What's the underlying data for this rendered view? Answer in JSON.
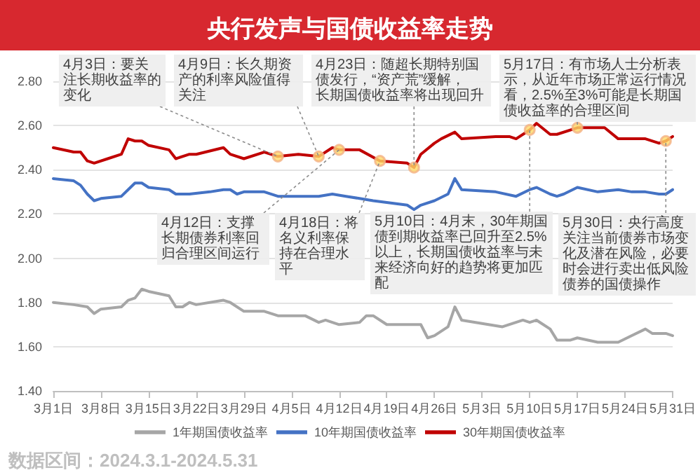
{
  "chart_data": {
    "type": "line",
    "title": "央行发声与国债收益率走势",
    "series": [
      {
        "name": "1年期国债收益率",
        "color": "#a6a6a6",
        "x": [
          "--03-01",
          "--03-04",
          "--03-06",
          "--03-07",
          "--03-08",
          "--03-11",
          "--03-12",
          "--03-13",
          "--03-14",
          "--03-15",
          "--03-18",
          "--03-19",
          "--03-20",
          "--03-21",
          "--03-22",
          "--03-26",
          "--03-27",
          "--03-29",
          "--04-01",
          "--04-03",
          "--04-07",
          "--04-09",
          "--04-10",
          "--04-12",
          "--04-15",
          "--04-16",
          "--04-17",
          "--04-19",
          "--04-22",
          "--04-24",
          "--04-25",
          "--04-26",
          "--04-28",
          "--04-29",
          "--04-30",
          "--05-06",
          "--05-09",
          "--05-10",
          "--05-11",
          "--05-13",
          "--05-14",
          "--05-16",
          "--05-17",
          "--05-20",
          "--05-21",
          "--05-23",
          "--05-25",
          "--05-27",
          "--05-28",
          "--05-30",
          "--05-31"
        ],
        "values": [
          1.8,
          1.79,
          1.78,
          1.75,
          1.77,
          1.78,
          1.81,
          1.82,
          1.86,
          1.85,
          1.83,
          1.78,
          1.78,
          1.8,
          1.79,
          1.81,
          1.8,
          1.76,
          1.76,
          1.74,
          1.74,
          1.71,
          1.72,
          1.7,
          1.71,
          1.74,
          1.74,
          1.7,
          1.7,
          1.7,
          1.64,
          1.65,
          1.69,
          1.78,
          1.72,
          1.69,
          1.72,
          1.71,
          1.72,
          1.68,
          1.63,
          1.63,
          1.64,
          1.62,
          1.62,
          1.62,
          1.65,
          1.68,
          1.66,
          1.66,
          1.65
        ]
      },
      {
        "name": "10年期国债收益率",
        "color": "#4472c4",
        "x": [
          "--03-01",
          "--03-04",
          "--03-05",
          "--03-06",
          "--03-07",
          "--03-08",
          "--03-11",
          "--03-13",
          "--03-14",
          "--03-15",
          "--03-18",
          "--03-19",
          "--03-21",
          "--03-24",
          "--03-26",
          "--03-27",
          "--03-28",
          "--03-29",
          "--04-01",
          "--04-03",
          "--04-06",
          "--04-09",
          "--04-11",
          "--04-13",
          "--04-15",
          "--04-17",
          "--04-22",
          "--04-23",
          "--04-24",
          "--04-26",
          "--04-28",
          "--04-29",
          "--04-30",
          "--05-05",
          "--05-08",
          "--05-10",
          "--05-11",
          "--05-13",
          "--05-14",
          "--05-15",
          "--05-17",
          "--05-20",
          "--05-23",
          "--05-25",
          "--05-27",
          "--05-29",
          "--05-30",
          "--05-31"
        ],
        "values": [
          2.36,
          2.35,
          2.33,
          2.29,
          2.26,
          2.27,
          2.28,
          2.34,
          2.34,
          2.32,
          2.31,
          2.29,
          2.29,
          2.3,
          2.31,
          2.31,
          2.29,
          2.3,
          2.3,
          2.28,
          2.28,
          2.28,
          2.29,
          2.28,
          2.27,
          2.26,
          2.24,
          2.22,
          2.24,
          2.26,
          2.29,
          2.36,
          2.31,
          2.3,
          2.28,
          2.31,
          2.32,
          2.29,
          2.28,
          2.29,
          2.32,
          2.3,
          2.31,
          2.3,
          2.3,
          2.29,
          2.29,
          2.31
        ]
      },
      {
        "name": "30年期国债收益率",
        "color": "#c00000",
        "x": [
          "--03-01",
          "--03-04",
          "--03-05",
          "--03-06",
          "--03-07",
          "--03-09",
          "--03-11",
          "--03-12",
          "--03-13",
          "--03-14",
          "--03-15",
          "--03-18",
          "--03-19",
          "--03-21",
          "--03-22",
          "--03-26",
          "--03-27",
          "--03-29",
          "--04-01",
          "--04-03",
          "--04-06",
          "--04-09",
          "--04-11",
          "--04-12",
          "--04-15",
          "--04-18",
          "--04-22",
          "--04-23",
          "--04-24",
          "--04-26",
          "--04-27",
          "--04-29",
          "--04-30",
          "--05-05",
          "--05-07",
          "--05-08",
          "--05-10",
          "--05-11",
          "--05-13",
          "--05-14",
          "--05-17",
          "--05-21",
          "--05-23",
          "--05-27",
          "--05-29",
          "--05-30",
          "--05-31"
        ],
        "values": [
          2.5,
          2.48,
          2.48,
          2.44,
          2.43,
          2.45,
          2.47,
          2.54,
          2.53,
          2.53,
          2.51,
          2.49,
          2.45,
          2.47,
          2.47,
          2.5,
          2.47,
          2.45,
          2.48,
          2.46,
          2.47,
          2.46,
          2.5,
          2.49,
          2.49,
          2.44,
          2.43,
          2.41,
          2.47,
          2.52,
          2.54,
          2.57,
          2.54,
          2.55,
          2.55,
          2.54,
          2.58,
          2.61,
          2.56,
          2.56,
          2.59,
          2.59,
          2.54,
          2.54,
          2.52,
          2.53,
          2.55
        ]
      }
    ],
    "xlim": [
      "--03-01",
      "--05-31"
    ],
    "xticks": [
      {
        "value": "--03-01",
        "label": "3月1日"
      },
      {
        "value": "--03-08",
        "label": "3月8日"
      },
      {
        "value": "--03-15",
        "label": "3月15日"
      },
      {
        "value": "--03-22",
        "label": "3月22日"
      },
      {
        "value": "--03-29",
        "label": "3月29日"
      },
      {
        "value": "--04-05",
        "label": "4月5日"
      },
      {
        "value": "--04-12",
        "label": "4月12日"
      },
      {
        "value": "--04-19",
        "label": "4月19日"
      },
      {
        "value": "--04-26",
        "label": "4月26日"
      },
      {
        "value": "--05-03",
        "label": "5月3日"
      },
      {
        "value": "--05-10",
        "label": "5月10日"
      },
      {
        "value": "--05-17",
        "label": "5月17日"
      },
      {
        "value": "--05-24",
        "label": "5月24日"
      },
      {
        "value": "--05-31",
        "label": "5月31日"
      }
    ],
    "ylim": [
      1.4,
      2.8
    ],
    "yticks": [
      {
        "value": 1.4,
        "label": "1.40"
      },
      {
        "value": 1.6,
        "label": "1.60"
      },
      {
        "value": 1.8,
        "label": "1.80"
      },
      {
        "value": 2.0,
        "label": "2.00"
      },
      {
        "value": 2.2,
        "label": "2.20"
      },
      {
        "value": 2.4,
        "label": "2.40"
      },
      {
        "value": 2.6,
        "label": "2.60"
      },
      {
        "value": 2.8,
        "label": "2.80"
      }
    ],
    "grid": "y",
    "legend": "bottom",
    "marker": "none",
    "line_style": "solid",
    "annotations": [
      {
        "text": "4月3日：要关注长期收益率的变化",
        "x": "--04-03",
        "y": 2.46
      },
      {
        "text": "4月9日：长久期资产的利率风险值得关注",
        "x": "--04-09",
        "y": 2.46
      },
      {
        "text": "4月12日：支撑长期债券利率回归合理区间运行",
        "x": "--04-12",
        "y": 2.49
      },
      {
        "text": "4月18日：将名义利率保持在合理水平",
        "x": "--04-18",
        "y": 2.44
      },
      {
        "text": "4月23日：随超长期特别国债发行，“资产荒”缓解，长期国债收益率将出现回升",
        "x": "--04-23",
        "y": 2.41
      },
      {
        "text": "5月10日：4月末，30年期国债到期收益率已回升至2.5%以上，长期国债收益率与未来经济向好的趋势将更加匹配",
        "x": "--05-10",
        "y": 2.58
      },
      {
        "text": "5月17日：有市场人士分析表示，从近年市场正常运行情况看，2.5%至3%可能是长期国债收益率的合理区间",
        "x": "--05-17",
        "y": 2.59
      },
      {
        "text": "5月30日：央行高度关注当前债券市场变化及潜在风险，必要时会进行卖出低风险债券的国债操作",
        "x": "--05-30",
        "y": 2.53
      },
      "数据区间：2024.3.1-2024.5.31"
    ]
  }
}
